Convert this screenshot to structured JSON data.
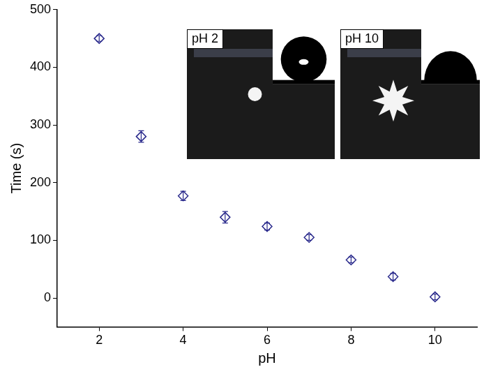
{
  "chart_data": {
    "type": "scatter",
    "x_label": "pH",
    "y_label": "Time (s)",
    "x": [
      2,
      3,
      4,
      5,
      6,
      7,
      8,
      9,
      10
    ],
    "values": [
      450,
      280,
      177,
      140,
      124,
      105,
      66,
      37,
      2
    ],
    "errors": [
      5,
      10,
      8,
      10,
      6,
      5,
      5,
      6,
      5
    ],
    "color": "#2a2a8c",
    "marker": "diamond",
    "xlim": [
      1,
      11
    ],
    "xticks": [
      2,
      4,
      6,
      8,
      10
    ],
    "ylim": [
      -50,
      500
    ],
    "yticks": [
      0,
      100,
      200,
      300,
      400,
      500
    ],
    "grid": false,
    "annotations": [
      "pH 2",
      "pH 10"
    ]
  }
}
